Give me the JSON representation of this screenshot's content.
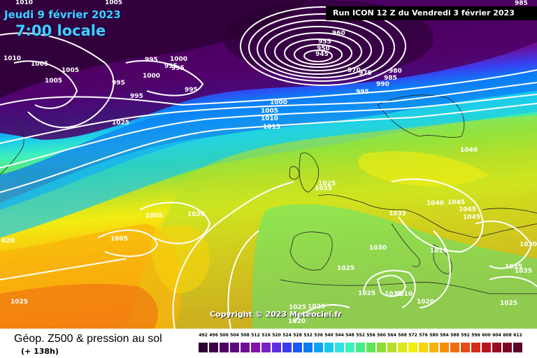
{
  "header": {
    "date": "Jeudi 9 février 2023",
    "local_time": "7:00 locale",
    "run_info": "Run ICON 12 Z du Vendredi 3 février 2023",
    "copyright": "Copyright © 2023 Meteociel.fr"
  },
  "footer": {
    "title": "Géop. Z500 & pression au sol",
    "subtitle": "(+ 138h)"
  },
  "colorscale": {
    "ticks": [
      "492",
      "496",
      "500",
      "504",
      "508",
      "512",
      "516",
      "520",
      "524",
      "528",
      "532",
      "536",
      "540",
      "544",
      "548",
      "552",
      "556",
      "560",
      "564",
      "568",
      "572",
      "576",
      "580",
      "584",
      "588",
      "592",
      "596",
      "600",
      "604",
      "608",
      "612"
    ],
    "colors": [
      "#2a0030",
      "#3a0048",
      "#4c0062",
      "#5e0a7c",
      "#700c96",
      "#8410ae",
      "#7a22c8",
      "#5c30e0",
      "#3a3ef0",
      "#1c58f4",
      "#0c7cf6",
      "#0ea4f4",
      "#18c8ee",
      "#30e2e2",
      "#3ef0be",
      "#44ec8a",
      "#5ee658",
      "#8ce034",
      "#b6e02a",
      "#dbe820",
      "#f4ec10",
      "#f8d40c",
      "#f8b40c",
      "#f6900c",
      "#f06c10",
      "#e84a14",
      "#d42c18",
      "#b8141c",
      "#9a0a22",
      "#7c0628",
      "#5c042a"
    ]
  },
  "pressure_labels": [
    {
      "text": "1010"
    },
    {
      "text": "1005"
    },
    {
      "text": "1005"
    },
    {
      "text": "1010"
    },
    {
      "text": "1005"
    },
    {
      "text": "1005"
    },
    {
      "text": "995"
    },
    {
      "text": "1000"
    },
    {
      "text": "995"
    },
    {
      "text": "995"
    },
    {
      "text": "1000"
    },
    {
      "text": "995"
    },
    {
      "text": "995"
    },
    {
      "text": "995"
    },
    {
      "text": "960"
    },
    {
      "text": "955"
    },
    {
      "text": "950"
    },
    {
      "text": "945"
    },
    {
      "text": "970"
    },
    {
      "text": "975"
    },
    {
      "text": "980"
    },
    {
      "text": "985"
    },
    {
      "text": "990"
    },
    {
      "text": "995"
    },
    {
      "text": "985"
    },
    {
      "text": "1000"
    },
    {
      "text": "1005"
    },
    {
      "text": "1010"
    },
    {
      "text": "1015"
    },
    {
      "text": "1040"
    },
    {
      "text": "1025"
    },
    {
      "text": "1035"
    },
    {
      "text": "1020"
    },
    {
      "text": "1005"
    },
    {
      "text": "1005"
    },
    {
      "text": "1035"
    },
    {
      "text": "1040"
    },
    {
      "text": "1045"
    },
    {
      "text": "1045"
    },
    {
      "text": "1045"
    },
    {
      "text": "1030"
    },
    {
      "text": "1025"
    },
    {
      "text": "1025"
    },
    {
      "text": "1015"
    },
    {
      "text": "1010"
    },
    {
      "text": "1020"
    },
    {
      "text": "1025"
    },
    {
      "text": "1025"
    },
    {
      "text": "1020"
    },
    {
      "text": "1030"
    },
    {
      "text": "1035"
    },
    {
      "text": "1035"
    },
    {
      "text": "1025"
    },
    {
      "text": "020"
    },
    {
      "text": "1025"
    },
    {
      "text": "1025"
    },
    {
      "text": "1010"
    }
  ]
}
